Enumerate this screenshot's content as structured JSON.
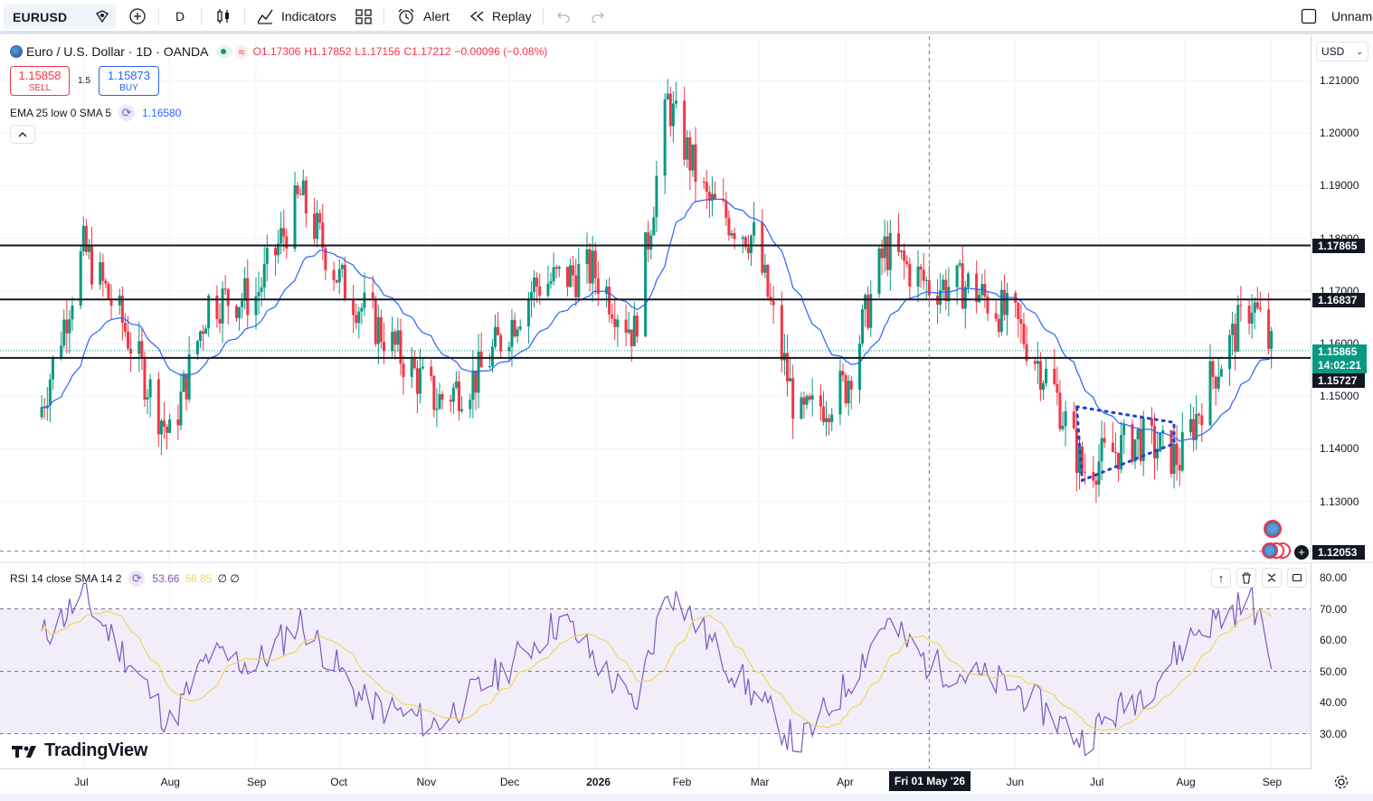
{
  "toolbar": {
    "symbol": "EURUSD",
    "interval": "D",
    "indicators_label": "Indicators",
    "alert_label": "Alert",
    "replay_label": "Replay",
    "layout_name": "Unname"
  },
  "legend": {
    "title": "Euro / U.S. Dollar · 1D · OANDA",
    "open": "O1.17306",
    "high": "H1.17852",
    "low": "L1.17156",
    "close": "C1.17212",
    "change": "−0.00096 (−0.08%)",
    "sell_price": "1.15858",
    "sell_label": "SELL",
    "spread": "1.5",
    "buy_price": "1.15873",
    "buy_label": "BUY",
    "ema_label": "EMA 25 low 0 SMA 5",
    "ema_value": "1.16580",
    "rsi_label": "RSI 14 close SMA 14 2",
    "rsi_value": "53.66",
    "rsi_sma_value": "56.85",
    "rsi_extra": "∅ ∅"
  },
  "price_axis": {
    "currency": "USD",
    "ticks": [
      "1.21000",
      "1.20000",
      "1.19000",
      "1.18000",
      "1.17000",
      "1.16000",
      "1.15000",
      "1.14000",
      "1.13000"
    ],
    "tags": {
      "level_top": "1.17865",
      "level_mid": "1.16837",
      "current_price": "1.15865",
      "countdown": "14:02:21",
      "level_low": "1.15727",
      "crosshair": "1.12053"
    }
  },
  "rsi_axis": {
    "ticks": [
      "80.00",
      "70.00",
      "60.00",
      "50.00",
      "40.00",
      "30.00"
    ]
  },
  "time_axis": {
    "labels": [
      "Jul",
      "Aug",
      "Sep",
      "Oct",
      "Nov",
      "Dec",
      "2026",
      "Feb",
      "Mar",
      "Apr",
      "Jun",
      "Jul",
      "Aug",
      "Sep"
    ],
    "crosshair_date": "Fri 01 May '26"
  },
  "brand": "TradingView",
  "colors": {
    "up": "#089981",
    "down": "#f23645",
    "ema": "#2962ff",
    "rsi": "#7e57c2",
    "rsi_sma": "#f2d55b",
    "rsi_band": "#7e57c2",
    "level": "#131722",
    "current_price": "#089981"
  },
  "chart_data": {
    "type": "candlestick",
    "title": "Euro / U.S. Dollar · 1D · OANDA",
    "price_range": [
      1.12,
      1.212
    ],
    "horizontal_levels": [
      1.17865,
      1.16837,
      1.15727
    ],
    "current_price": 1.15865,
    "crosshair_price": 1.12053,
    "series_keypoints": [
      {
        "date": "2025-06-15",
        "close": 1.146
      },
      {
        "date": "2025-07-01",
        "close": 1.178
      },
      {
        "date": "2025-07-15",
        "close": 1.164
      },
      {
        "date": "2025-08-01",
        "close": 1.142
      },
      {
        "date": "2025-08-15",
        "close": 1.168
      },
      {
        "date": "2025-09-01",
        "close": 1.169
      },
      {
        "date": "2025-09-17",
        "close": 1.188
      },
      {
        "date": "2025-10-01",
        "close": 1.172
      },
      {
        "date": "2025-10-15",
        "close": 1.163
      },
      {
        "date": "2025-11-05",
        "close": 1.149
      },
      {
        "date": "2025-11-20",
        "close": 1.154
      },
      {
        "date": "2025-12-10",
        "close": 1.171
      },
      {
        "date": "2025-12-31",
        "close": 1.174
      },
      {
        "date": "2026-01-15",
        "close": 1.162
      },
      {
        "date": "2026-01-27",
        "close": 1.206
      },
      {
        "date": "2026-02-10",
        "close": 1.187
      },
      {
        "date": "2026-02-27",
        "close": 1.18
      },
      {
        "date": "2026-03-15",
        "close": 1.145
      },
      {
        "date": "2026-04-01",
        "close": 1.152
      },
      {
        "date": "2026-04-15",
        "close": 1.178
      },
      {
        "date": "2026-05-01",
        "close": 1.171
      },
      {
        "date": "2026-05-15",
        "close": 1.171
      },
      {
        "date": "2026-06-01",
        "close": 1.164
      },
      {
        "date": "2026-06-15",
        "close": 1.151
      },
      {
        "date": "2026-06-25",
        "close": 1.136
      },
      {
        "date": "2026-07-15",
        "close": 1.142
      },
      {
        "date": "2026-07-30",
        "close": 1.138
      },
      {
        "date": "2026-08-10",
        "close": 1.153
      },
      {
        "date": "2026-08-25",
        "close": 1.168
      },
      {
        "date": "2026-09-01",
        "close": 1.1587
      }
    ],
    "rsi_keypoints": [
      {
        "date": "2025-06-15",
        "rsi": 60
      },
      {
        "date": "2025-07-01",
        "rsi": 74
      },
      {
        "date": "2025-07-20",
        "rsi": 50
      },
      {
        "date": "2025-08-01",
        "rsi": 33
      },
      {
        "date": "2025-08-15",
        "rsi": 55
      },
      {
        "date": "2025-09-01",
        "rsi": 52
      },
      {
        "date": "2025-09-17",
        "rsi": 66
      },
      {
        "date": "2025-10-10",
        "rsi": 40
      },
      {
        "date": "2025-11-05",
        "rsi": 33
      },
      {
        "date": "2025-12-01",
        "rsi": 52
      },
      {
        "date": "2025-12-20",
        "rsi": 67
      },
      {
        "date": "2026-01-15",
        "rsi": 38
      },
      {
        "date": "2026-01-27",
        "rsi": 77
      },
      {
        "date": "2026-02-15",
        "rsi": 55
      },
      {
        "date": "2026-03-15",
        "rsi": 26
      },
      {
        "date": "2026-04-01",
        "rsi": 45
      },
      {
        "date": "2026-04-15",
        "rsi": 66
      },
      {
        "date": "2026-05-01",
        "rsi": 52
      },
      {
        "date": "2026-06-01",
        "rsi": 45
      },
      {
        "date": "2026-06-25",
        "rsi": 28
      },
      {
        "date": "2026-07-20",
        "rsi": 46
      },
      {
        "date": "2026-08-05",
        "rsi": 63
      },
      {
        "date": "2026-08-25",
        "rsi": 73
      },
      {
        "date": "2026-09-01",
        "rsi": 53.66
      }
    ],
    "rsi_bands": [
      30,
      50,
      70
    ],
    "rsi_range": [
      23,
      82
    ]
  }
}
